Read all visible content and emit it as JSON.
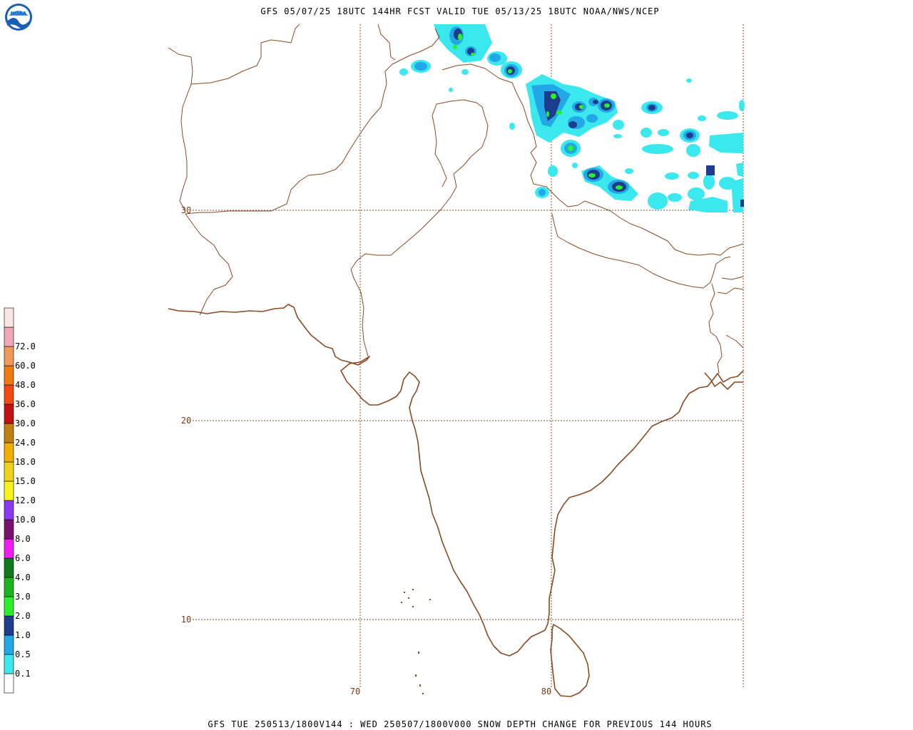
{
  "header": {
    "title": "GFS 05/07/25 18UTC 144HR FCST VALID TUE 05/13/25 18UTC NOAA/NWS/NCEP",
    "logo_text": "NOAA"
  },
  "footer": {
    "caption": "GFS TUE 250513/1800V144 : WED 250507/1800V000 SNOW DEPTH CHANGE FOR PREVIOUS 144 HOURS"
  },
  "map": {
    "latitude_labels": [
      "30",
      "20",
      "10"
    ],
    "longitude_labels": [
      "70",
      "80"
    ],
    "line_color": "#8a4a24"
  },
  "legend": {
    "levels": [
      {
        "label": "",
        "color": "#ffffff"
      },
      {
        "label": "0.1",
        "color": "#3be8ee"
      },
      {
        "label": "0.5",
        "color": "#22a8e6"
      },
      {
        "label": "1.0",
        "color": "#1e3c8c"
      },
      {
        "label": "2.0",
        "color": "#2af02a"
      },
      {
        "label": "3.0",
        "color": "#1cb41c"
      },
      {
        "label": "4.0",
        "color": "#107a1a"
      },
      {
        "label": "6.0",
        "color": "#f01cf0"
      },
      {
        "label": "8.0",
        "color": "#7a1070"
      },
      {
        "label": "10.0",
        "color": "#8a3af0"
      },
      {
        "label": "12.0",
        "color": "#f8f41a"
      },
      {
        "label": "15.0",
        "color": "#f0d21a"
      },
      {
        "label": "18.0",
        "color": "#f0b000"
      },
      {
        "label": "24.0",
        "color": "#c08010"
      },
      {
        "label": "30.0",
        "color": "#c01010"
      },
      {
        "label": "36.0",
        "color": "#f04a10"
      },
      {
        "label": "48.0",
        "color": "#f07a10"
      },
      {
        "label": "60.0",
        "color": "#f09a5a"
      },
      {
        "label": "72.0",
        "color": "#f0a8b4"
      },
      {
        "label": "",
        "color": "#fbe6e6"
      }
    ]
  }
}
